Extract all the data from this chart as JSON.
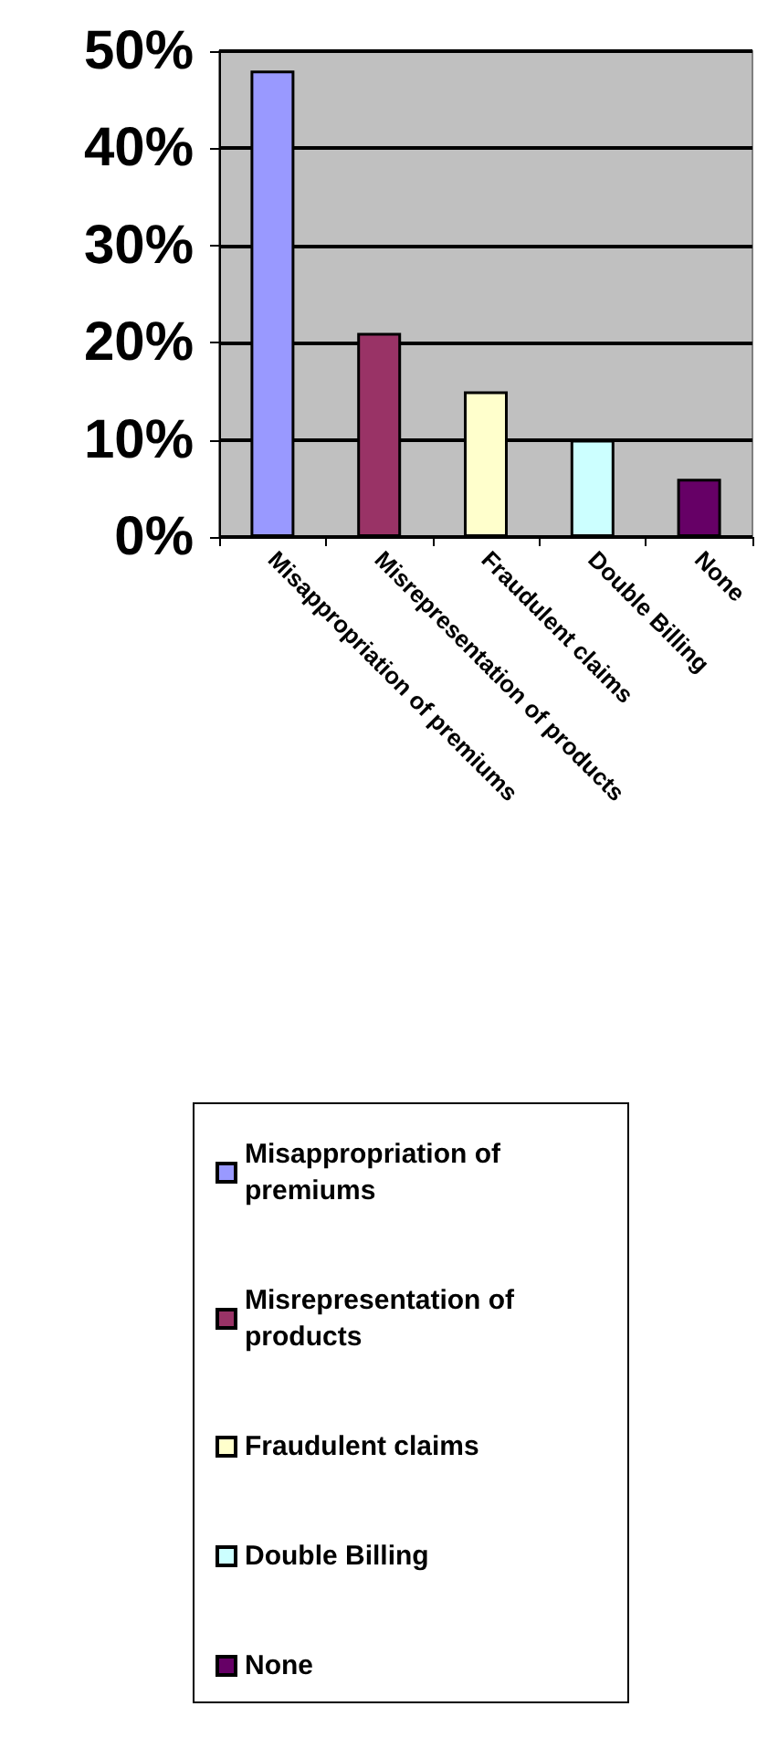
{
  "chart_data": {
    "type": "bar",
    "categories": [
      "Misappropriation of premiums",
      "Misrepresentation of products",
      "Fraudulent claims",
      "Double Billing",
      "None"
    ],
    "series": [
      {
        "name": "Misappropriation of premiums",
        "color": "#9999ff",
        "values": [
          48,
          null,
          null,
          null,
          null
        ]
      },
      {
        "name": "Misrepresentation of products",
        "color": "#993366",
        "values": [
          null,
          21,
          null,
          null,
          null
        ]
      },
      {
        "name": "Fraudulent claims",
        "color": "#ffffcc",
        "values": [
          null,
          null,
          15,
          null,
          null
        ]
      },
      {
        "name": "Double Billing",
        "color": "#ccffff",
        "values": [
          null,
          null,
          null,
          10,
          null
        ]
      },
      {
        "name": "None",
        "color": "#660066",
        "values": [
          null,
          null,
          null,
          null,
          6
        ]
      }
    ],
    "ylim": [
      0,
      50
    ],
    "yticks": [
      {
        "value": 0,
        "label": "0%"
      },
      {
        "value": 10,
        "label": "10%"
      },
      {
        "value": 20,
        "label": "20%"
      },
      {
        "value": 30,
        "label": "30%"
      },
      {
        "value": 40,
        "label": "40%"
      },
      {
        "value": 50,
        "label": "50%"
      }
    ],
    "grid": "y",
    "legend": "bottom"
  }
}
